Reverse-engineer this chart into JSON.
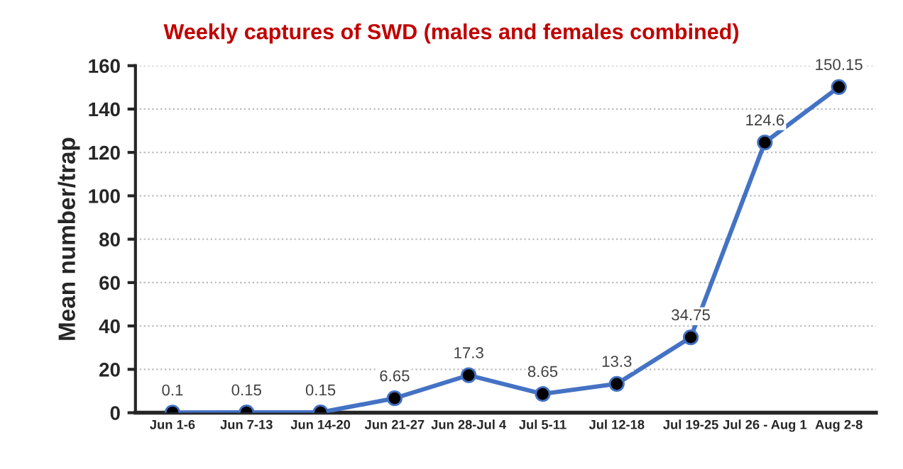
{
  "chart_data": {
    "type": "line",
    "title": "Weekly captures of SWD (males and females combined)",
    "ylabel": "Mean number/trap",
    "categories": [
      "Jun 1-6",
      "Jun 7-13",
      "Jun 14-20",
      "Jun 21-27",
      "Jun 28-Jul 4",
      "Jul 5-11",
      "Jul 12-18",
      "Jul 19-25",
      "Jul 26 - Aug 1",
      "Aug 2-8"
    ],
    "series": [
      {
        "color": "#4472c4",
        "values": [
          0.1,
          0.15,
          0.15,
          6.65,
          17.3,
          8.65,
          13.3,
          34.75,
          124.6,
          150.15
        ]
      }
    ],
    "ylim": [
      0,
      160
    ],
    "yticks": [
      0,
      20,
      40,
      60,
      80,
      100,
      120,
      140,
      160
    ],
    "grid": "y",
    "marker": "circle",
    "line_style": "solid",
    "data_labels": true
  }
}
